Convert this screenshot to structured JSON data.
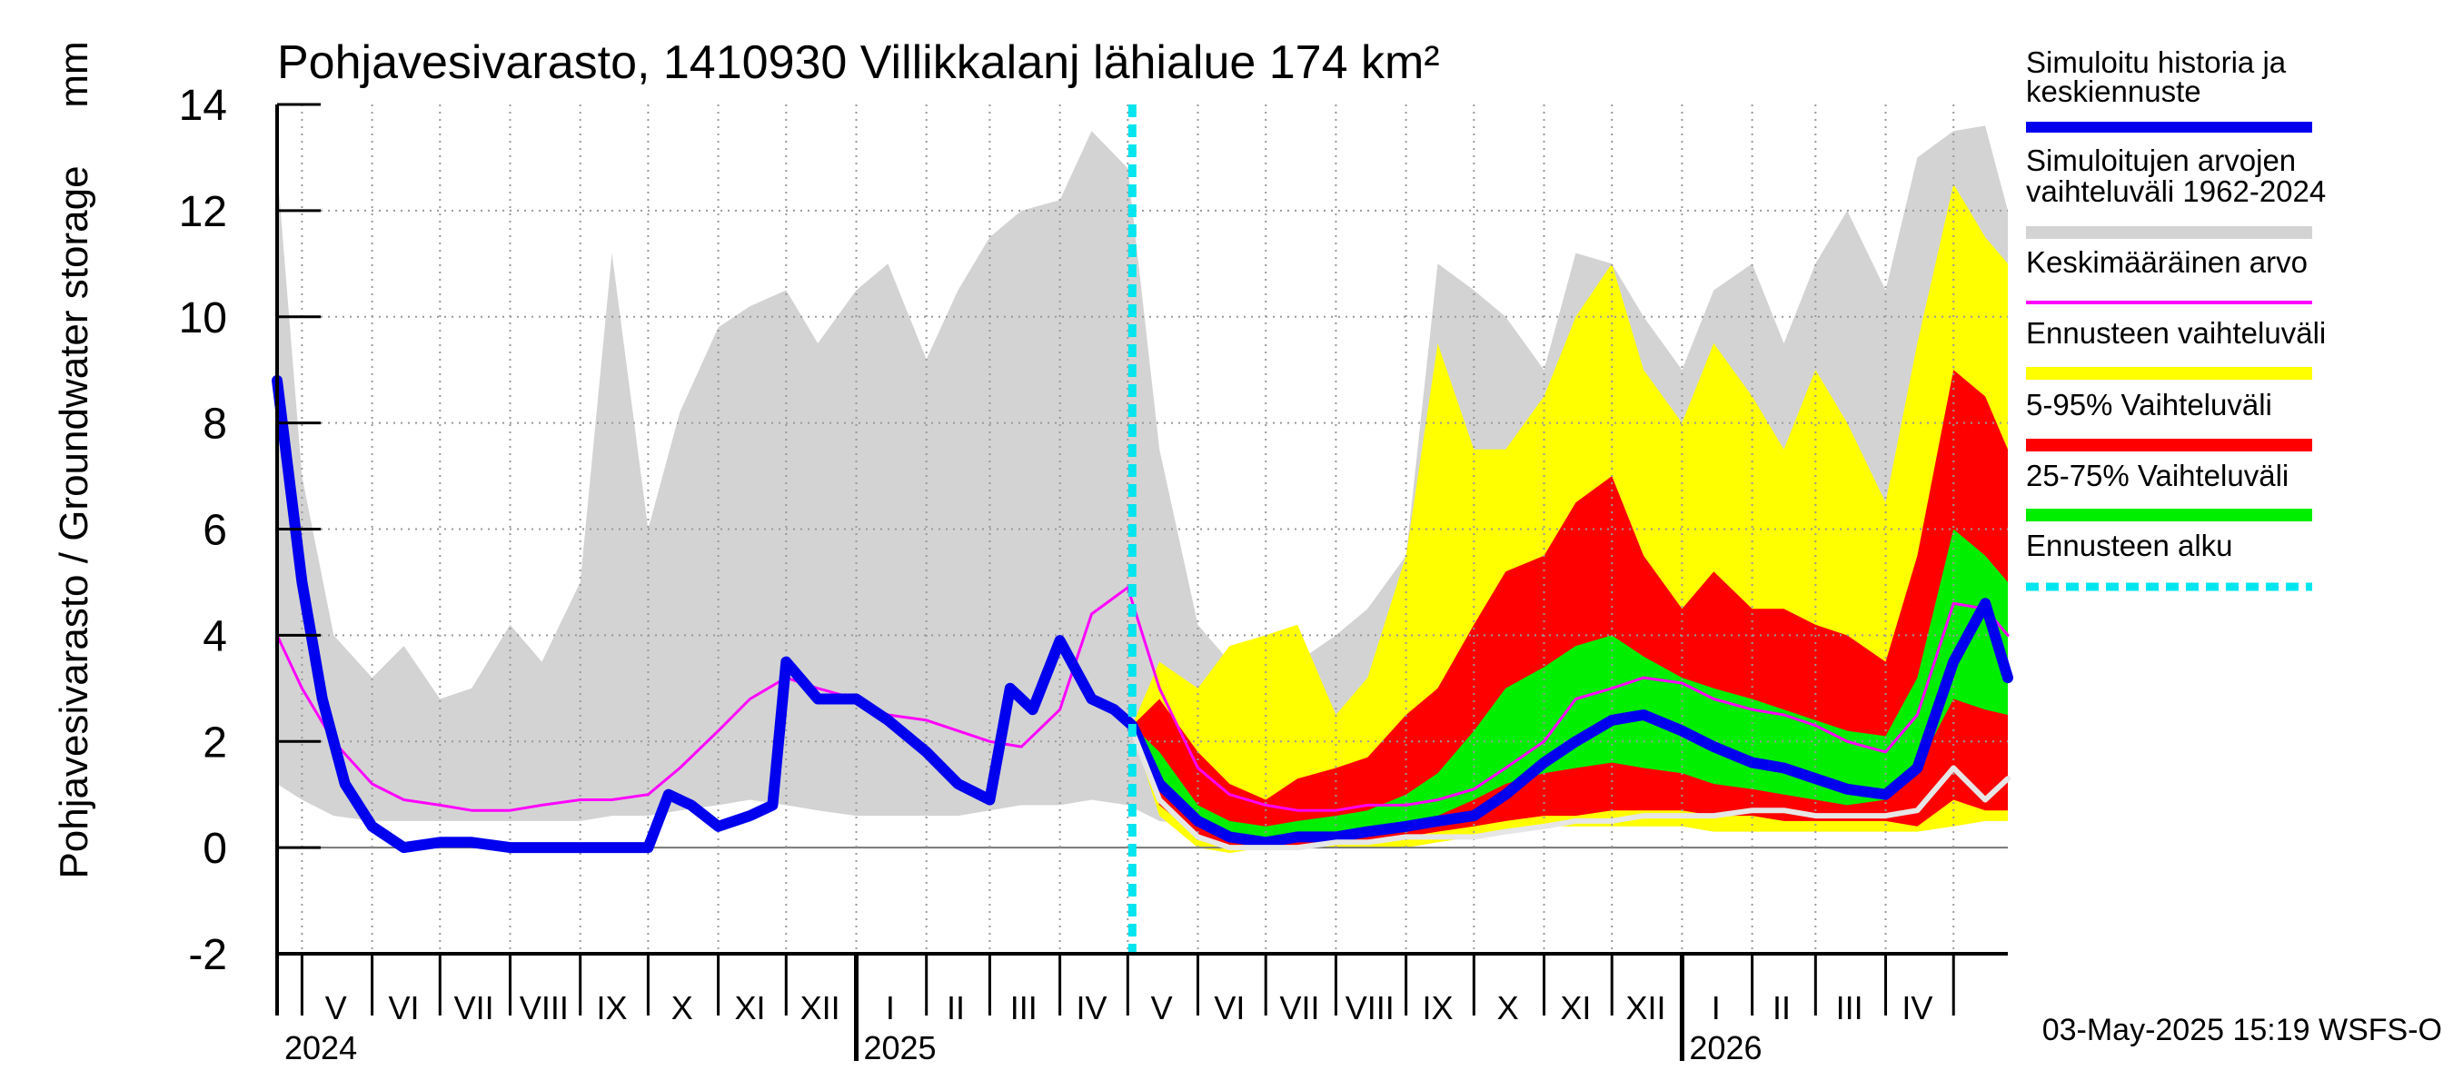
{
  "chart_data": {
    "type": "area",
    "title": "Pohjavesivarasto, 1410930 Villikkalanj lähialue 174 km²",
    "ylabel": "Pohjavesivarasto / Groundwater storage",
    "yunit": "mm",
    "ylim": [
      -2,
      14
    ],
    "yticks": [
      -2,
      0,
      2,
      4,
      6,
      8,
      10,
      12,
      14
    ],
    "grid": true,
    "legend_placement": "right",
    "xaxis": {
      "start": "2024-04-20",
      "end": "2026-05-25",
      "month_labels": [
        {
          "label": "V",
          "mid": "2024-05-16"
        },
        {
          "label": "VI",
          "mid": "2024-06-15"
        },
        {
          "label": "VII",
          "mid": "2024-07-16"
        },
        {
          "label": "VIII",
          "mid": "2024-08-16"
        },
        {
          "label": "IX",
          "mid": "2024-09-15"
        },
        {
          "label": "X",
          "mid": "2024-10-16"
        },
        {
          "label": "XI",
          "mid": "2024-11-15"
        },
        {
          "label": "XII",
          "mid": "2024-12-16"
        },
        {
          "label": "I",
          "mid": "2025-01-16"
        },
        {
          "label": "II",
          "mid": "2025-02-14"
        },
        {
          "label": "III",
          "mid": "2025-03-16"
        },
        {
          "label": "IV",
          "mid": "2025-04-15"
        },
        {
          "label": "V",
          "mid": "2025-05-16"
        },
        {
          "label": "VI",
          "mid": "2025-06-15"
        },
        {
          "label": "VII",
          "mid": "2025-07-16"
        },
        {
          "label": "VIII",
          "mid": "2025-08-16"
        },
        {
          "label": "IX",
          "mid": "2025-09-15"
        },
        {
          "label": "X",
          "mid": "2025-10-16"
        },
        {
          "label": "XI",
          "mid": "2025-11-15"
        },
        {
          "label": "XII",
          "mid": "2025-12-16"
        },
        {
          "label": "I",
          "mid": "2026-01-16"
        },
        {
          "label": "II",
          "mid": "2026-02-14"
        },
        {
          "label": "III",
          "mid": "2026-03-16"
        },
        {
          "label": "IV",
          "mid": "2026-04-15"
        }
      ],
      "year_labels": [
        {
          "label": "2024",
          "date": "2024-04-20"
        },
        {
          "label": "2025",
          "date": "2025-01-01"
        },
        {
          "label": "2026",
          "date": "2026-01-01"
        }
      ]
    },
    "forecast_start": "2025-05-03",
    "legend": [
      {
        "label": "Simuloitu historia ja keskiennuste",
        "color": "#0000ee",
        "style": "line"
      },
      {
        "label": "Simuloitujen arvojen vaihteluväli 1962-2024",
        "color": "#d3d3d3",
        "style": "band"
      },
      {
        "label": "Keskimääräinen arvo",
        "color": "#ff00ff",
        "style": "thin-line"
      },
      {
        "label": "Ennusteen vaihteluväli",
        "color": "#ffff00",
        "style": "band"
      },
      {
        "label": "5-95% Vaihteluväli",
        "color": "#ff0000",
        "style": "band"
      },
      {
        "label": "25-75% Vaihteluväli",
        "color": "#00ee00",
        "style": "band"
      },
      {
        "label": "Ennusteen alku",
        "color": "#00e5ee",
        "style": "dashed"
      }
    ],
    "series": [
      {
        "name": "Simuloitujen arvojen vaihteluväli 1962-2024",
        "kind": "band",
        "x": [
          "2024-04-20",
          "2024-05-01",
          "2024-05-15",
          "2024-06-01",
          "2024-06-15",
          "2024-07-01",
          "2024-07-15",
          "2024-08-01",
          "2024-08-15",
          "2024-09-01",
          "2024-09-15",
          "2024-10-01",
          "2024-10-15",
          "2024-11-01",
          "2024-11-15",
          "2024-12-01",
          "2024-12-15",
          "2025-01-01",
          "2025-01-15",
          "2025-02-01",
          "2025-02-15",
          "2025-03-01",
          "2025-03-15",
          "2025-04-01",
          "2025-04-15",
          "2025-05-01",
          "2025-05-15",
          "2025-06-01",
          "2025-06-15",
          "2025-07-01",
          "2025-07-15",
          "2025-08-01",
          "2025-08-15",
          "2025-09-01",
          "2025-09-15",
          "2025-10-01",
          "2025-10-15",
          "2025-11-01",
          "2025-11-15",
          "2025-12-01",
          "2025-12-15",
          "2026-01-01",
          "2026-01-15",
          "2026-02-01",
          "2026-02-15",
          "2026-03-01",
          "2026-03-15",
          "2026-04-01",
          "2026-04-15",
          "2026-05-01",
          "2026-05-15",
          "2026-05-25"
        ],
        "lower": [
          1.2,
          0.9,
          0.6,
          0.5,
          0.5,
          0.5,
          0.5,
          0.5,
          0.5,
          0.5,
          0.6,
          0.6,
          0.7,
          0.8,
          0.9,
          0.8,
          0.7,
          0.6,
          0.6,
          0.6,
          0.6,
          0.7,
          0.8,
          0.8,
          0.9,
          0.8,
          0.5,
          0.4,
          0.3,
          0.3,
          0.3,
          0.3,
          0.4,
          0.5,
          0.6,
          0.8,
          1.0,
          1.1,
          1.1,
          1.1,
          1.0,
          1.0,
          1.0,
          0.9,
          0.9,
          0.8,
          0.8,
          0.9,
          1.1,
          1.3,
          1.0,
          1.0
        ],
        "upper": [
          12.8,
          7.0,
          4.0,
          3.2,
          3.8,
          2.8,
          3.0,
          4.2,
          3.5,
          5.0,
          11.2,
          6.0,
          8.2,
          9.8,
          10.2,
          10.5,
          9.5,
          10.5,
          11.0,
          9.2,
          10.5,
          11.5,
          12.0,
          12.2,
          13.5,
          12.8,
          7.5,
          4.2,
          3.5,
          3.8,
          3.5,
          4.0,
          4.5,
          5.5,
          11.0,
          10.5,
          10.0,
          9.0,
          11.2,
          11.0,
          10.0,
          9.0,
          10.5,
          11.0,
          9.5,
          11.0,
          12.0,
          10.5,
          13.0,
          13.5,
          13.6,
          12.0
        ]
      },
      {
        "name": "Ennusteen vaihteluväli",
        "kind": "band",
        "x": [
          "2025-05-03",
          "2025-05-15",
          "2025-06-01",
          "2025-06-15",
          "2025-07-01",
          "2025-07-15",
          "2025-08-01",
          "2025-08-15",
          "2025-09-01",
          "2025-09-15",
          "2025-10-01",
          "2025-10-15",
          "2025-11-01",
          "2025-11-15",
          "2025-12-01",
          "2025-12-15",
          "2026-01-01",
          "2026-01-15",
          "2026-02-01",
          "2026-02-15",
          "2026-03-01",
          "2026-03-15",
          "2026-04-01",
          "2026-04-15",
          "2026-05-01",
          "2026-05-15",
          "2026-05-25"
        ],
        "lower": [
          2.2,
          0.6,
          0.0,
          -0.1,
          0.0,
          0.0,
          0.0,
          0.0,
          0.0,
          0.1,
          0.2,
          0.3,
          0.4,
          0.4,
          0.4,
          0.4,
          0.4,
          0.3,
          0.3,
          0.3,
          0.3,
          0.3,
          0.3,
          0.3,
          0.4,
          0.5,
          0.5
        ],
        "upper": [
          2.3,
          3.5,
          3.0,
          3.8,
          4.0,
          4.2,
          2.5,
          3.2,
          5.5,
          9.5,
          7.5,
          7.5,
          8.5,
          10.0,
          11.0,
          9.0,
          8.0,
          9.5,
          8.5,
          7.5,
          9.0,
          8.0,
          6.5,
          9.5,
          12.5,
          11.5,
          11.0
        ]
      },
      {
        "name": "5-95% Vaihteluväli",
        "kind": "band",
        "x": [
          "2025-05-03",
          "2025-05-15",
          "2025-06-01",
          "2025-06-15",
          "2025-07-01",
          "2025-07-15",
          "2025-08-01",
          "2025-08-15",
          "2025-09-01",
          "2025-09-15",
          "2025-10-01",
          "2025-10-15",
          "2025-11-01",
          "2025-11-15",
          "2025-12-01",
          "2025-12-15",
          "2026-01-01",
          "2026-01-15",
          "2026-02-01",
          "2026-02-15",
          "2026-03-01",
          "2026-03-15",
          "2026-04-01",
          "2026-04-15",
          "2026-05-01",
          "2026-05-15",
          "2026-05-25"
        ],
        "lower": [
          2.2,
          0.8,
          0.2,
          0.0,
          0.0,
          0.0,
          0.1,
          0.1,
          0.2,
          0.3,
          0.4,
          0.5,
          0.6,
          0.6,
          0.7,
          0.7,
          0.7,
          0.6,
          0.6,
          0.5,
          0.5,
          0.5,
          0.5,
          0.4,
          0.9,
          0.7,
          0.7
        ],
        "upper": [
          2.3,
          2.8,
          1.8,
          1.2,
          0.9,
          1.3,
          1.5,
          1.7,
          2.5,
          3.0,
          4.2,
          5.2,
          5.5,
          6.5,
          7.0,
          5.5,
          4.5,
          5.2,
          4.5,
          4.5,
          4.2,
          4.0,
          3.5,
          5.5,
          9.0,
          8.5,
          7.5
        ]
      },
      {
        "name": "25-75% Vaihteluväli",
        "kind": "band",
        "x": [
          "2025-05-03",
          "2025-05-15",
          "2025-06-01",
          "2025-06-15",
          "2025-07-01",
          "2025-07-15",
          "2025-08-01",
          "2025-08-15",
          "2025-09-01",
          "2025-09-15",
          "2025-10-01",
          "2025-10-15",
          "2025-11-01",
          "2025-11-15",
          "2025-12-01",
          "2025-12-15",
          "2026-01-01",
          "2026-01-15",
          "2026-02-01",
          "2026-02-15",
          "2026-03-01",
          "2026-03-15",
          "2026-04-01",
          "2026-04-15",
          "2026-05-01",
          "2026-05-15",
          "2026-05-25"
        ],
        "lower": [
          2.2,
          1.2,
          0.4,
          0.2,
          0.1,
          0.2,
          0.2,
          0.3,
          0.4,
          0.6,
          0.9,
          1.2,
          1.4,
          1.5,
          1.6,
          1.5,
          1.4,
          1.2,
          1.1,
          1.0,
          0.9,
          0.8,
          0.9,
          1.5,
          2.8,
          2.6,
          2.5
        ],
        "upper": [
          2.3,
          1.8,
          0.8,
          0.5,
          0.4,
          0.5,
          0.6,
          0.7,
          1.0,
          1.4,
          2.2,
          3.0,
          3.4,
          3.8,
          4.0,
          3.6,
          3.2,
          3.0,
          2.8,
          2.6,
          2.4,
          2.2,
          2.1,
          3.2,
          6.0,
          5.5,
          5.0
        ]
      },
      {
        "name": "Keskimääräinen arvo",
        "kind": "line",
        "x": [
          "2024-04-20",
          "2024-05-01",
          "2024-05-15",
          "2024-06-01",
          "2024-06-15",
          "2024-07-01",
          "2024-07-15",
          "2024-08-01",
          "2024-08-15",
          "2024-09-01",
          "2024-09-15",
          "2024-10-01",
          "2024-10-15",
          "2024-11-01",
          "2024-11-15",
          "2024-12-01",
          "2024-12-15",
          "2025-01-01",
          "2025-01-15",
          "2025-02-01",
          "2025-02-15",
          "2025-03-01",
          "2025-03-15",
          "2025-04-01",
          "2025-04-15",
          "2025-05-01",
          "2025-05-15",
          "2025-06-01",
          "2025-06-15",
          "2025-07-01",
          "2025-07-15",
          "2025-08-01",
          "2025-08-15",
          "2025-09-01",
          "2025-09-15",
          "2025-10-01",
          "2025-10-15",
          "2025-11-01",
          "2025-11-15",
          "2025-12-01",
          "2025-12-15",
          "2026-01-01",
          "2026-01-15",
          "2026-02-01",
          "2026-02-15",
          "2026-03-01",
          "2026-03-15",
          "2026-04-01",
          "2026-04-15",
          "2026-05-01",
          "2026-05-15",
          "2026-05-25"
        ],
        "y": [
          4.0,
          3.0,
          2.0,
          1.2,
          0.9,
          0.8,
          0.7,
          0.7,
          0.8,
          0.9,
          0.9,
          1.0,
          1.5,
          2.2,
          2.8,
          3.2,
          3.0,
          2.8,
          2.5,
          2.4,
          2.2,
          2.0,
          1.9,
          2.6,
          4.4,
          4.9,
          3.0,
          1.5,
          1.0,
          0.8,
          0.7,
          0.7,
          0.8,
          0.8,
          0.9,
          1.1,
          1.5,
          2.0,
          2.8,
          3.0,
          3.2,
          3.1,
          2.8,
          2.6,
          2.5,
          2.3,
          2.0,
          1.8,
          2.5,
          4.6,
          4.5,
          4.0
        ]
      },
      {
        "name": "Simuloitu historia ja keskiennuste",
        "kind": "line",
        "x": [
          "2024-04-20",
          "2024-05-01",
          "2024-05-10",
          "2024-05-20",
          "2024-06-01",
          "2024-06-15",
          "2024-07-01",
          "2024-07-15",
          "2024-08-01",
          "2024-08-15",
          "2024-09-01",
          "2024-09-15",
          "2024-10-01",
          "2024-10-10",
          "2024-10-20",
          "2024-11-01",
          "2024-11-15",
          "2024-11-25",
          "2024-12-01",
          "2024-12-15",
          "2025-01-01",
          "2025-01-15",
          "2025-02-01",
          "2025-02-15",
          "2025-03-01",
          "2025-03-10",
          "2025-03-20",
          "2025-04-01",
          "2025-04-15",
          "2025-04-25",
          "2025-05-03",
          "2025-05-15",
          "2025-06-01",
          "2025-06-15",
          "2025-07-01",
          "2025-07-15",
          "2025-08-01",
          "2025-08-15",
          "2025-09-01",
          "2025-09-15",
          "2025-10-01",
          "2025-10-15",
          "2025-11-01",
          "2025-11-15",
          "2025-12-01",
          "2025-12-15",
          "2026-01-01",
          "2026-01-15",
          "2026-02-01",
          "2026-02-15",
          "2026-03-01",
          "2026-03-15",
          "2026-04-01",
          "2026-04-15",
          "2026-05-01",
          "2026-05-15",
          "2026-05-25"
        ],
        "y": [
          8.8,
          5.0,
          2.8,
          1.2,
          0.4,
          0.0,
          0.1,
          0.1,
          0.0,
          0.0,
          0.0,
          0.0,
          0.0,
          1.0,
          0.8,
          0.4,
          0.6,
          0.8,
          3.5,
          2.8,
          2.8,
          2.4,
          1.8,
          1.2,
          0.9,
          3.0,
          2.6,
          3.9,
          2.8,
          2.6,
          2.3,
          1.2,
          0.5,
          0.2,
          0.1,
          0.2,
          0.2,
          0.3,
          0.4,
          0.5,
          0.6,
          1.0,
          1.6,
          2.0,
          2.4,
          2.5,
          2.2,
          1.9,
          1.6,
          1.5,
          1.3,
          1.1,
          1.0,
          1.5,
          3.5,
          4.6,
          3.2
        ]
      },
      {
        "name": "",
        "kind": "line",
        "x": [
          "2025-05-03",
          "2025-05-15",
          "2025-06-01",
          "2025-06-15",
          "2025-07-01",
          "2025-07-15",
          "2025-08-01",
          "2025-08-15",
          "2025-09-01",
          "2025-09-15",
          "2025-10-01",
          "2025-10-15",
          "2025-11-01",
          "2025-11-15",
          "2025-12-01",
          "2025-12-15",
          "2026-01-01",
          "2026-01-15",
          "2026-02-01",
          "2026-02-15",
          "2026-03-01",
          "2026-03-15",
          "2026-04-01",
          "2026-04-15",
          "2026-05-01",
          "2026-05-15",
          "2026-05-25"
        ],
        "y": [
          2.2,
          0.9,
          0.2,
          0.0,
          0.0,
          0.0,
          0.1,
          0.1,
          0.2,
          0.2,
          0.2,
          0.3,
          0.4,
          0.5,
          0.5,
          0.6,
          0.6,
          0.6,
          0.7,
          0.7,
          0.6,
          0.6,
          0.6,
          0.7,
          1.5,
          0.9,
          1.3
        ]
      }
    ]
  },
  "footer": {
    "timestamp": "03-May-2025 15:19 WSFS-O"
  }
}
